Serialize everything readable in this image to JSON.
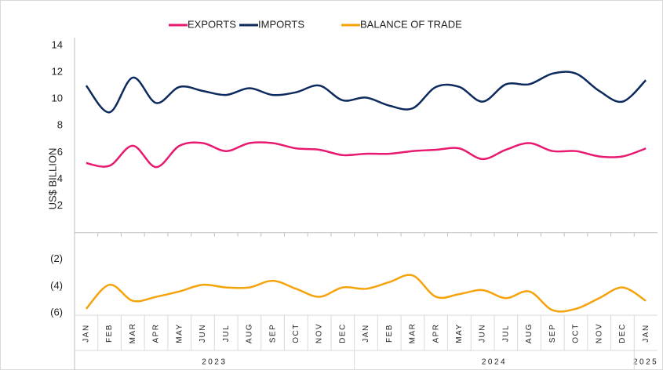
{
  "chart_data": {
    "type": "line",
    "y_label": "US$ BILLION",
    "categories": [
      "JAN",
      "FEB",
      "MAR",
      "APR",
      "MAY",
      "JUN",
      "JUL",
      "AUG",
      "SEP",
      "OCT",
      "NOV",
      "DEC",
      "JAN",
      "FEB",
      "MAR",
      "APR",
      "MAY",
      "JUN",
      "JUL",
      "AUG",
      "SEP",
      "OCT",
      "NOV",
      "DEC",
      "JAN"
    ],
    "x_groups": [
      {
        "label": "2023",
        "count": 12
      },
      {
        "label": "2024",
        "count": 12
      },
      {
        "label": "2025",
        "count": 1
      }
    ],
    "series": [
      {
        "name": "EXPORTS",
        "color": "#e8196f",
        "values": [
          5.2,
          5.0,
          6.5,
          4.9,
          6.5,
          6.7,
          6.1,
          6.7,
          6.7,
          6.3,
          6.2,
          5.8,
          5.9,
          5.9,
          6.1,
          6.2,
          6.3,
          5.5,
          6.2,
          6.7,
          6.1,
          6.1,
          5.7,
          5.7,
          6.3
        ]
      },
      {
        "name": "IMPORTS",
        "color": "#0d2a5e",
        "values": [
          11.0,
          9.0,
          11.6,
          9.7,
          10.9,
          10.6,
          10.3,
          10.8,
          10.3,
          10.5,
          11.0,
          9.9,
          10.1,
          9.5,
          9.3,
          10.9,
          10.9,
          9.8,
          11.1,
          11.1,
          11.9,
          11.9,
          10.6,
          9.8,
          11.4
        ]
      },
      {
        "name": "BALANCE OF TRADE",
        "color": "#f5a30a",
        "values": [
          -5.7,
          -3.9,
          -5.1,
          -4.8,
          -4.4,
          -3.9,
          -4.1,
          -4.1,
          -3.6,
          -4.2,
          -4.8,
          -4.1,
          -4.2,
          -3.7,
          -3.2,
          -4.8,
          -4.6,
          -4.3,
          -4.9,
          -4.4,
          -5.8,
          -5.7,
          -4.9,
          -4.1,
          -5.1
        ]
      }
    ],
    "ylim": [
      -6,
      14
    ],
    "yticks": [
      {
        "value": -6,
        "label": "(6)"
      },
      {
        "value": -4,
        "label": "(4)"
      },
      {
        "value": -2,
        "label": "(2)"
      },
      2,
      4,
      6,
      8,
      10,
      12,
      14
    ],
    "legend": "top",
    "grid": false
  }
}
